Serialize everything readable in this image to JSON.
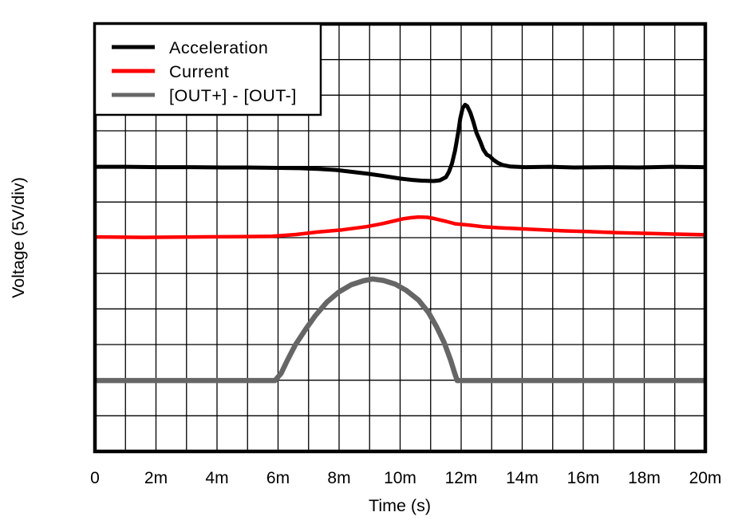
{
  "figure": {
    "background": "#ffffff",
    "grid_color": "#000000",
    "border_color": "#000000"
  },
  "chart_data": {
    "type": "line",
    "title": "",
    "xlabel": "Time (s)",
    "ylabel": "Voltage (5V/div)",
    "x_unit": "ms",
    "x_range": [
      0,
      20
    ],
    "x_divisions": 20,
    "y_divisions": 12,
    "volts_per_div": 5,
    "grid": true,
    "legend_position": "top-left",
    "x_tick_labels": [
      "0",
      "2m",
      "4m",
      "6m",
      "8m",
      "10m",
      "12m",
      "14m",
      "16m",
      "18m",
      "20m"
    ],
    "series": [
      {
        "name": "Acceleration",
        "color": "#000000",
        "width": 5,
        "baseline_div": 8,
        "points": [
          [
            0,
            7.99
          ],
          [
            1.0,
            7.99
          ],
          [
            2.1,
            7.98
          ],
          [
            3.2,
            7.98
          ],
          [
            4.2,
            7.97
          ],
          [
            5.0,
            7.97
          ],
          [
            6.0,
            7.96
          ],
          [
            6.7,
            7.95
          ],
          [
            7.3,
            7.93
          ],
          [
            7.9,
            7.9
          ],
          [
            8.4,
            7.85
          ],
          [
            8.9,
            7.8
          ],
          [
            9.4,
            7.74
          ],
          [
            10.0,
            7.66
          ],
          [
            10.4,
            7.62
          ],
          [
            10.7,
            7.6
          ],
          [
            11.1,
            7.59
          ],
          [
            11.3,
            7.61
          ],
          [
            11.5,
            7.7
          ],
          [
            11.6,
            7.85
          ],
          [
            11.7,
            8.08
          ],
          [
            11.8,
            8.45
          ],
          [
            11.9,
            8.94
          ],
          [
            11.97,
            9.35
          ],
          [
            12.05,
            9.64
          ],
          [
            12.13,
            9.73
          ],
          [
            12.2,
            9.69
          ],
          [
            12.3,
            9.51
          ],
          [
            12.4,
            9.25
          ],
          [
            12.5,
            8.95
          ],
          [
            12.63,
            8.69
          ],
          [
            12.73,
            8.47
          ],
          [
            12.84,
            8.33
          ],
          [
            12.95,
            8.28
          ],
          [
            13.05,
            8.19
          ],
          [
            13.2,
            8.1
          ],
          [
            13.36,
            8.04
          ],
          [
            13.6,
            8.0
          ],
          [
            14.1,
            7.98
          ],
          [
            14.9,
            7.99
          ],
          [
            15.7,
            7.97
          ],
          [
            16.8,
            7.98
          ],
          [
            17.8,
            7.97
          ],
          [
            18.9,
            7.99
          ],
          [
            20,
            7.98
          ]
        ]
      },
      {
        "name": "Current",
        "color": "#ff0000",
        "width": 4.5,
        "baseline_div": 6,
        "points": [
          [
            0,
            6.02
          ],
          [
            1.6,
            6.01
          ],
          [
            3.2,
            6.02
          ],
          [
            4.7,
            6.03
          ],
          [
            5.8,
            6.04
          ],
          [
            6.6,
            6.09
          ],
          [
            7.3,
            6.16
          ],
          [
            8.1,
            6.22
          ],
          [
            8.9,
            6.31
          ],
          [
            9.4,
            6.39
          ],
          [
            9.8,
            6.47
          ],
          [
            10.1,
            6.53
          ],
          [
            10.35,
            6.56
          ],
          [
            10.6,
            6.58
          ],
          [
            10.9,
            6.57
          ],
          [
            11.1,
            6.54
          ],
          [
            11.5,
            6.46
          ],
          [
            11.8,
            6.39
          ],
          [
            12.3,
            6.35
          ],
          [
            12.7,
            6.31
          ],
          [
            13.2,
            6.28
          ],
          [
            13.9,
            6.25
          ],
          [
            14.7,
            6.22
          ],
          [
            15.4,
            6.19
          ],
          [
            16.2,
            6.17
          ],
          [
            17.1,
            6.14
          ],
          [
            18.1,
            6.12
          ],
          [
            19.0,
            6.1
          ],
          [
            20,
            6.08
          ]
        ]
      },
      {
        "name": "[OUT+] - [OUT-]",
        "color": "#666666",
        "width": 6.5,
        "baseline_div": 2,
        "points": [
          [
            0,
            1.99
          ],
          [
            2.1,
            1.99
          ],
          [
            4.2,
            1.99
          ],
          [
            5.9,
            1.99
          ],
          [
            6.1,
            2.19
          ],
          [
            6.3,
            2.55
          ],
          [
            6.56,
            2.98
          ],
          [
            6.88,
            3.4
          ],
          [
            7.22,
            3.81
          ],
          [
            7.6,
            4.19
          ],
          [
            8.0,
            4.48
          ],
          [
            8.4,
            4.68
          ],
          [
            8.8,
            4.79
          ],
          [
            9.1,
            4.84
          ],
          [
            9.45,
            4.8
          ],
          [
            9.83,
            4.7
          ],
          [
            10.2,
            4.52
          ],
          [
            10.6,
            4.25
          ],
          [
            10.93,
            3.9
          ],
          [
            11.2,
            3.49
          ],
          [
            11.45,
            3.04
          ],
          [
            11.66,
            2.55
          ],
          [
            11.79,
            2.19
          ],
          [
            11.87,
            1.99
          ],
          [
            13.9,
            1.99
          ],
          [
            16.5,
            1.99
          ],
          [
            20,
            1.99
          ]
        ]
      }
    ]
  }
}
